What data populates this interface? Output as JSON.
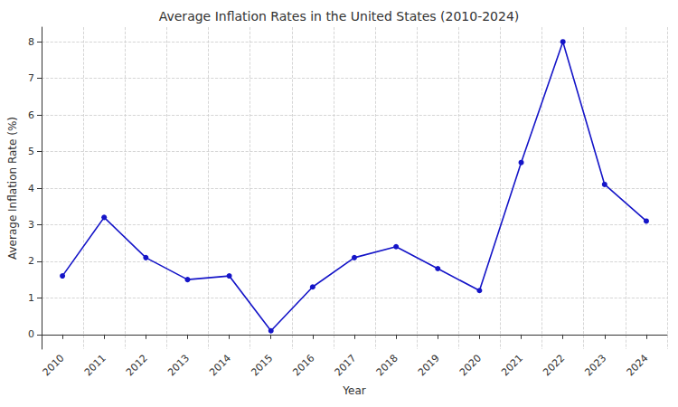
{
  "chart_data": {
    "type": "line",
    "title": "Average Inflation Rates in the United States (2010-2024)",
    "x_label": "Year",
    "y_label": "Average Inflation Rate (%)",
    "categories": [
      "2010",
      "2011",
      "2012",
      "2013",
      "2014",
      "2015",
      "2016",
      "2017",
      "2018",
      "2019",
      "2020",
      "2021",
      "2022",
      "2023",
      "2024"
    ],
    "values": [
      1.6,
      3.2,
      2.1,
      1.5,
      1.6,
      0.1,
      1.3,
      2.1,
      2.4,
      1.8,
      1.2,
      4.7,
      8.0,
      4.1,
      3.1
    ],
    "color": "#1515c8",
    "marker": "circle",
    "line_style": "solid",
    "ylim": [
      -0.4,
      8.4
    ],
    "yticks": [
      0,
      1,
      2,
      3,
      4,
      5,
      6,
      7,
      8
    ],
    "grid": true
  }
}
